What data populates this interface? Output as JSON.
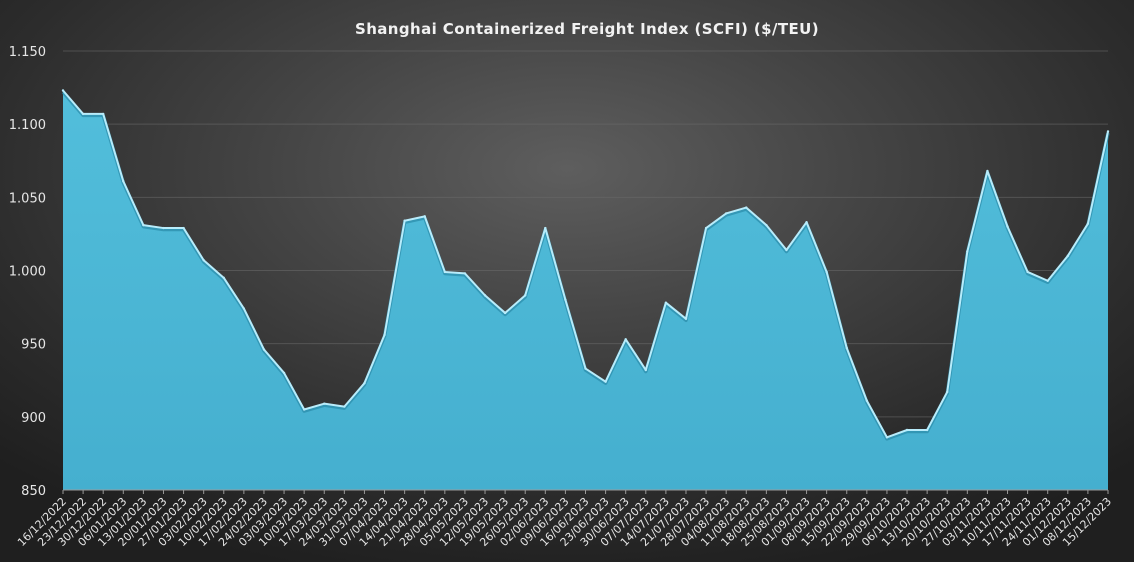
{
  "chart_data": {
    "type": "area",
    "title": "Shanghai  Containerized Freight Index  (SCFI) ($/TEU)",
    "xlabel": "",
    "ylabel": "",
    "ylim": [
      850,
      1150
    ],
    "yticks": [
      850,
      900,
      950,
      1000,
      1050,
      1100,
      1150
    ],
    "ytick_labels": [
      "850",
      "900",
      "950",
      "1.000",
      "1.050",
      "1.100",
      "1.150"
    ],
    "grid": true,
    "legend": "none",
    "colors": {
      "fill": "#4ab5d4",
      "edge": "#b8ecfb"
    },
    "x": [
      "16/12/2022",
      "23/12/2022",
      "30/12/2022",
      "06/01/2023",
      "13/01/2023",
      "20/01/2023",
      "27/01/2023",
      "03/02/2023",
      "10/02/2023",
      "17/02/2023",
      "24/02/2023",
      "03/03/2023",
      "10/03/2023",
      "17/03/2023",
      "24/03/2023",
      "31/03/2023",
      "07/04/2023",
      "14/04/2023",
      "21/04/2023",
      "28/04/2023",
      "05/05/2023",
      "12/05/2023",
      "19/05/2023",
      "26/05/2023",
      "02/06/2023",
      "09/06/2023",
      "16/06/2023",
      "23/06/2023",
      "30/06/2023",
      "07/07/2023",
      "14/07/2023",
      "21/07/2023",
      "28/07/2023",
      "04/08/2023",
      "11/08/2023",
      "18/08/2023",
      "25/08/2023",
      "01/09/2023",
      "08/09/2023",
      "15/09/2023",
      "22/09/2023",
      "29/09/2023",
      "06/10/2023",
      "13/10/2023",
      "20/10/2023",
      "27/10/2023",
      "03/11/2023",
      "10/11/2023",
      "17/11/2023",
      "24/11/2023",
      "01/12/2023",
      "08/12/2023",
      "15/12/2023"
    ],
    "series": [
      {
        "values": [
          1123,
          1107,
          1107,
          1061,
          1031,
          1029,
          1029,
          1007,
          995,
          974,
          946,
          930,
          905,
          909,
          907,
          923,
          956,
          1034,
          1037,
          999,
          998,
          983,
          971,
          983,
          1029,
          980,
          933,
          924,
          953,
          932,
          978,
          967,
          1029,
          1039,
          1043,
          1031,
          1014,
          1033,
          999,
          947,
          911,
          886,
          891,
          891,
          917,
          1013,
          1068,
          1030,
          999,
          993,
          1010,
          1032,
          1095
        ]
      }
    ]
  }
}
